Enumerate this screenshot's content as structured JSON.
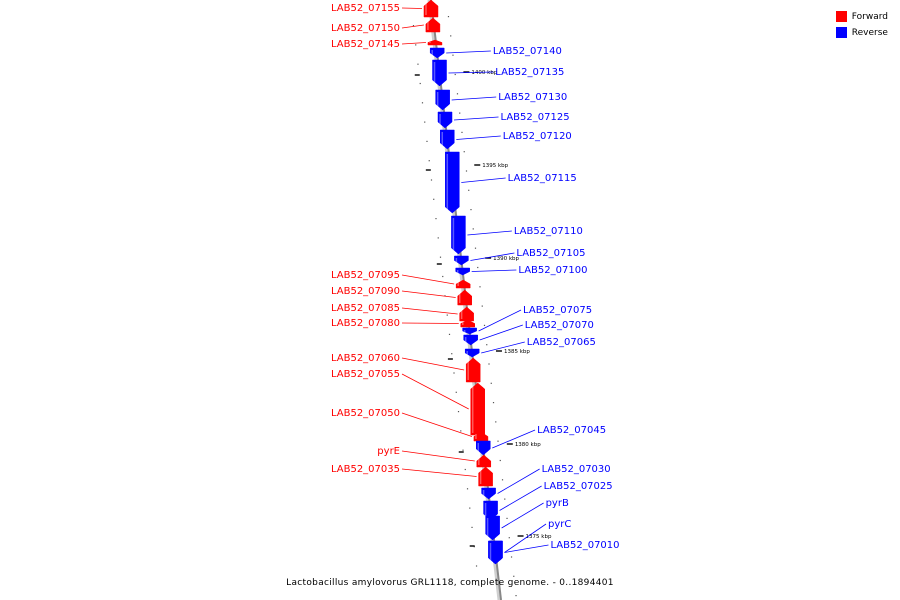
{
  "colors": {
    "forward": "#ff0000",
    "reverse": "#0000ff",
    "axis": "#888888"
  },
  "legend": [
    {
      "label": "Forward",
      "color": "#ff0000"
    },
    {
      "label": "Reverse",
      "color": "#0000ff"
    }
  ],
  "caption": "Lactobacillus amylovorus GRL1118, complete genome. - 0..1894401",
  "ticks": [
    {
      "label": "1400 kbp"
    },
    {
      "label": "1395 kbp"
    },
    {
      "label": "1390 kbp"
    },
    {
      "label": "1385 kbp"
    },
    {
      "label": "1380 kbp"
    },
    {
      "label": "1375 kbp"
    }
  ],
  "genes": [
    {
      "name": "LAB52_07155",
      "strand": "forward"
    },
    {
      "name": "LAB52_07150",
      "strand": "forward"
    },
    {
      "name": "LAB52_07145",
      "strand": "forward"
    },
    {
      "name": "LAB52_07140",
      "strand": "reverse"
    },
    {
      "name": "LAB52_07135",
      "strand": "reverse"
    },
    {
      "name": "LAB52_07130",
      "strand": "reverse"
    },
    {
      "name": "LAB52_07125",
      "strand": "reverse"
    },
    {
      "name": "LAB52_07120",
      "strand": "reverse"
    },
    {
      "name": "LAB52_07115",
      "strand": "reverse"
    },
    {
      "name": "LAB52_07110",
      "strand": "reverse"
    },
    {
      "name": "LAB52_07105",
      "strand": "reverse"
    },
    {
      "name": "LAB52_07100",
      "strand": "reverse"
    },
    {
      "name": "LAB52_07095",
      "strand": "forward"
    },
    {
      "name": "LAB52_07090",
      "strand": "forward"
    },
    {
      "name": "LAB52_07085",
      "strand": "forward"
    },
    {
      "name": "LAB52_07080",
      "strand": "forward"
    },
    {
      "name": "LAB52_07075",
      "strand": "reverse"
    },
    {
      "name": "LAB52_07070",
      "strand": "reverse"
    },
    {
      "name": "LAB52_07065",
      "strand": "reverse"
    },
    {
      "name": "LAB52_07060",
      "strand": "forward"
    },
    {
      "name": "LAB52_07055",
      "strand": "forward"
    },
    {
      "name": "LAB52_07050",
      "strand": "forward"
    },
    {
      "name": "LAB52_07045",
      "strand": "reverse"
    },
    {
      "name": "pyrE",
      "strand": "forward"
    },
    {
      "name": "LAB52_07035",
      "strand": "forward"
    },
    {
      "name": "LAB52_07030",
      "strand": "reverse"
    },
    {
      "name": "LAB52_07025",
      "strand": "reverse"
    },
    {
      "name": "pyrB",
      "strand": "reverse"
    },
    {
      "name": "pyrC",
      "strand": "reverse"
    },
    {
      "name": "LAB52_07010",
      "strand": "reverse"
    }
  ]
}
